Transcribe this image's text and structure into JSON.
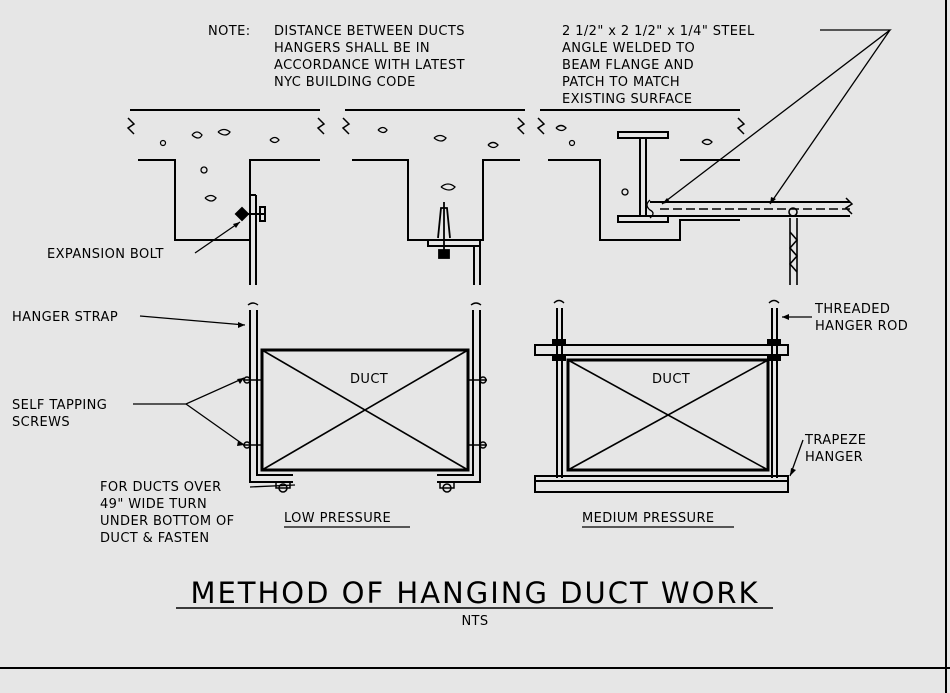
{
  "note": {
    "prefix": "NOTE:",
    "lines": [
      "DISTANCE BETWEEN DUCTS",
      "HANGERS SHALL BE IN",
      "ACCORDANCE WITH LATEST",
      "NYC BUILDING CODE"
    ]
  },
  "steel_angle_note": {
    "lines": [
      "2 1/2\" x 2 1/2\" x 1/4\" STEEL",
      "ANGLE WELDED TO",
      "BEAM FLANGE AND",
      "PATCH TO MATCH",
      "EXISTING SURFACE"
    ]
  },
  "labels": {
    "expansion_bolt": "EXPANSION BOLT",
    "hanger_strap": "HANGER STRAP",
    "self_tapping_screws": [
      "SELF TAPPING",
      "SCREWS"
    ],
    "threaded_hanger_rod": [
      "THREADED",
      "HANGER ROD"
    ],
    "trapeze_hanger": [
      "TRAPEZE",
      "HANGER"
    ],
    "wide_duct_note": [
      "FOR DUCTS OVER",
      "49\" WIDE TURN",
      "UNDER BOTTOM OF",
      "DUCT & FASTEN"
    ],
    "duct_left": "DUCT",
    "duct_right": "DUCT"
  },
  "captions": {
    "low_pressure": "LOW PRESSURE",
    "medium_pressure": "MEDIUM PRESSURE"
  },
  "title": "METHOD OF HANGING DUCT WORK",
  "scale": "NTS",
  "colors": {
    "background": "#e6e6e6",
    "ink": "#000000"
  }
}
